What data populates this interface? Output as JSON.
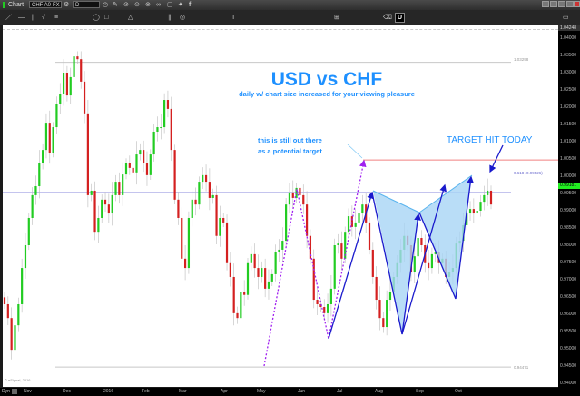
{
  "window": {
    "title": "Chart",
    "symbol": "CHF A0-FX",
    "interval": "D",
    "u_button": "U"
  },
  "annotations": {
    "title": "USD vs CHF",
    "subtitle": "daily w/ chart size increased for your viewing pleasure",
    "note_line1": "this is still out there",
    "note_line2": "as a potential target",
    "target": "TARGET HIT TODAY",
    "level_high": "1.03298",
    "level_low": "0.94471",
    "fib_label": "0.618 (0.99526)",
    "copyright": "© eSignal, 2016"
  },
  "colors": {
    "up": "#22cc22",
    "down": "#d42020",
    "annotation": "#1e90ff",
    "pattern_fill": "#a8d4f5",
    "pattern_line": "#1a1acc",
    "projection": "#a020f0",
    "fib_line": "#8888dd",
    "target_line": "#f08080"
  },
  "chart_data": {
    "type": "candlestick",
    "title": "USD vs CHF",
    "ylim": [
      0.94,
      1.04
    ],
    "yticks": [
      "1.04000",
      "1.03500",
      "1.03000",
      "1.02500",
      "1.02000",
      "1.01500",
      "1.01000",
      "1.00500",
      "1.00000",
      "0.99500",
      "0.99000",
      "0.98500",
      "0.98000",
      "0.97500",
      "0.97000",
      "0.96500",
      "0.96000",
      "0.95500",
      "0.95000",
      "0.94500",
      "0.94000"
    ],
    "xticks": [
      "Nov",
      "Dec",
      "2016",
      "Feb",
      "Mar",
      "Apr",
      "May",
      "Jun",
      "Jul",
      "Aug",
      "Sep",
      "Oct"
    ],
    "y_top_label": "1.04248",
    "last_price": "0.99181",
    "x_axis_prefix": "Dyn",
    "closes": [
      0.9629,
      0.9589,
      0.9497,
      0.9568,
      0.9629,
      0.9734,
      0.98,
      0.9879,
      0.9945,
      0.9971,
      1.0037,
      1.0076,
      1.0155,
      1.0068,
      1.0142,
      1.0208,
      1.0239,
      1.03,
      1.0234,
      1.0287,
      1.0347,
      1.0339,
      1.0274,
      1.0182,
      0.9945,
      0.9958,
      0.9839,
      0.9879,
      0.9932,
      0.9918,
      0.9892,
      0.9945,
      0.9984,
      0.9945,
      1.0005,
      1.0037,
      1.0024,
      1.0011,
      1.0063,
      1.0076,
      1.0037,
      1.0003,
      1.0063,
      1.0129,
      1.0142,
      1.0142,
      1.0221,
      1.0195,
      1.0076,
      0.9932,
      0.9879,
      0.9761,
      0.9734,
      0.9879,
      0.9932,
      0.9918,
      0.9984,
      1.0003,
      0.9984,
      0.9937,
      0.9945,
      0.9827,
      0.9879,
      0.9866,
      0.9748,
      0.9708,
      0.9603,
      0.9589,
      0.9664,
      0.9656,
      0.9748,
      0.9774,
      0.9734,
      0.9708,
      0.9734,
      0.9674,
      0.9695,
      0.9716,
      0.9779,
      0.9787,
      0.9813,
      0.9918,
      0.9953,
      0.9937,
      0.9966,
      0.9945,
      0.9918,
      0.9827,
      0.9761,
      0.9642,
      0.9629,
      0.9621,
      0.9603,
      0.9629,
      0.9674,
      0.98,
      0.9805,
      0.9761,
      0.9839,
      0.9884,
      0.9853,
      0.9866,
      0.9892,
      0.9918,
      0.9866,
      0.9787,
      0.9708,
      0.9642,
      0.9589,
      0.9563,
      0.9642,
      0.9664,
      0.9708,
      0.9748,
      0.9787,
      0.9827,
      0.98,
      0.9721,
      0.9768,
      0.9821,
      0.98,
      0.9748,
      0.9734,
      0.9774,
      0.9779,
      0.9748,
      0.9761,
      0.9708,
      0.9721,
      0.9734,
      0.9805,
      0.9813,
      0.9858,
      0.9892,
      0.9905,
      0.9892,
      0.99,
      0.9926,
      0.9945,
      0.9958,
      0.9918
    ],
    "horizontal_levels": [
      1.03298,
      0.99526,
      1.0047,
      0.94471
    ]
  }
}
